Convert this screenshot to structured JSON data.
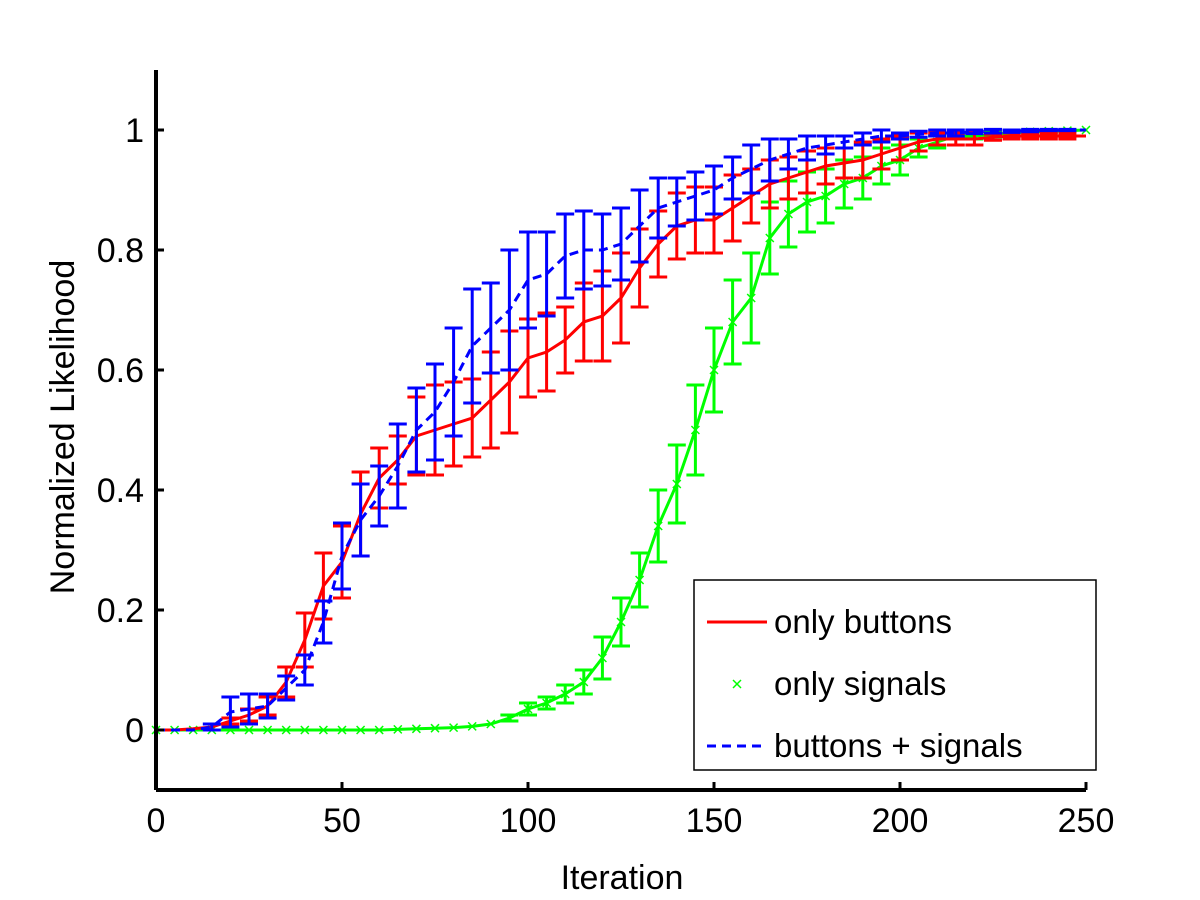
{
  "chart_data": {
    "type": "line",
    "xlabel": "Iteration",
    "ylabel": "Normalized Likelihood",
    "xlim": [
      0,
      250
    ],
    "ylim": [
      -0.1,
      1.1
    ],
    "xticks": [
      0,
      50,
      100,
      150,
      200,
      250
    ],
    "yticks": [
      0,
      0.2,
      0.4,
      0.6,
      0.8,
      1
    ],
    "xtick_labels": [
      "0",
      "50",
      "100",
      "150",
      "200",
      "250"
    ],
    "ytick_labels": [
      "0",
      "0.2",
      "0.4",
      "0.6",
      "0.8",
      "1"
    ],
    "grid": false,
    "legend_position": "bottom-right",
    "series": [
      {
        "name": "only buttons",
        "color": "#ff0000",
        "line_style": "solid",
        "marker": "none",
        "x": [
          0,
          5,
          10,
          15,
          20,
          25,
          30,
          35,
          40,
          45,
          50,
          55,
          60,
          65,
          70,
          75,
          80,
          85,
          90,
          95,
          100,
          105,
          110,
          115,
          120,
          125,
          130,
          135,
          140,
          145,
          150,
          155,
          160,
          165,
          170,
          175,
          180,
          185,
          190,
          195,
          200,
          205,
          210,
          215,
          220,
          225,
          230,
          235,
          240,
          245,
          250
        ],
        "y": [
          0,
          0,
          0.002,
          0.005,
          0.015,
          0.025,
          0.04,
          0.08,
          0.15,
          0.24,
          0.28,
          0.36,
          0.42,
          0.45,
          0.49,
          0.5,
          0.51,
          0.52,
          0.55,
          0.58,
          0.62,
          0.63,
          0.65,
          0.68,
          0.69,
          0.72,
          0.77,
          0.81,
          0.84,
          0.85,
          0.85,
          0.87,
          0.89,
          0.91,
          0.92,
          0.93,
          0.94,
          0.945,
          0.95,
          0.96,
          0.97,
          0.98,
          0.985,
          0.985,
          0.985,
          0.988,
          0.99,
          0.99,
          0.99,
          0.99,
          0.99
        ],
        "err": [
          0,
          0,
          0,
          0,
          0.005,
          0.01,
          0.015,
          0.025,
          0.045,
          0.055,
          0.06,
          0.07,
          0.05,
          0.04,
          0.065,
          0.075,
          0.07,
          0.065,
          0.08,
          0.085,
          0.065,
          0.065,
          0.055,
          0.065,
          0.075,
          0.075,
          0.065,
          0.055,
          0.055,
          0.055,
          0.055,
          0.055,
          0.045,
          0.04,
          0.035,
          0.035,
          0.03,
          0.025,
          0.03,
          0.025,
          0.02,
          0.015,
          0.01,
          0.01,
          0.01,
          0.005,
          0.005,
          0.005,
          0.005,
          0.005,
          0
        ]
      },
      {
        "name": "only signals",
        "color": "#00ff00",
        "line_style": "solid",
        "marker": "x",
        "x": [
          0,
          5,
          10,
          15,
          20,
          25,
          30,
          35,
          40,
          45,
          50,
          55,
          60,
          65,
          70,
          75,
          80,
          85,
          90,
          95,
          100,
          105,
          110,
          115,
          120,
          125,
          130,
          135,
          140,
          145,
          150,
          155,
          160,
          165,
          170,
          175,
          180,
          185,
          190,
          195,
          200,
          205,
          210,
          215,
          220,
          225,
          230,
          235,
          240,
          245,
          250
        ],
        "y": [
          0,
          0,
          0,
          0,
          0,
          0,
          0,
          0,
          0,
          0,
          0,
          0,
          0,
          0.001,
          0.002,
          0.003,
          0.004,
          0.006,
          0.01,
          0.02,
          0.035,
          0.045,
          0.06,
          0.08,
          0.12,
          0.18,
          0.25,
          0.34,
          0.41,
          0.5,
          0.6,
          0.68,
          0.72,
          0.82,
          0.86,
          0.88,
          0.89,
          0.91,
          0.92,
          0.94,
          0.95,
          0.97,
          0.98,
          0.99,
          0.99,
          0.993,
          0.995,
          0.997,
          0.998,
          0.999,
          1.0
        ],
        "err": [
          0,
          0,
          0,
          0,
          0,
          0,
          0,
          0,
          0,
          0,
          0,
          0,
          0,
          0,
          0,
          0,
          0,
          0,
          0,
          0.005,
          0.01,
          0.01,
          0.015,
          0.02,
          0.035,
          0.04,
          0.045,
          0.06,
          0.065,
          0.075,
          0.07,
          0.07,
          0.075,
          0.06,
          0.055,
          0.05,
          0.045,
          0.04,
          0.035,
          0.03,
          0.025,
          0.015,
          0.01,
          0.005,
          0.005,
          0.005,
          0.005,
          0.003,
          0.002,
          0.001,
          0
        ]
      },
      {
        "name": "buttons + signals",
        "color": "#0000ff",
        "line_style": "dashed",
        "marker": "none",
        "x": [
          0,
          5,
          10,
          15,
          20,
          25,
          30,
          35,
          40,
          45,
          50,
          55,
          60,
          65,
          70,
          75,
          80,
          85,
          90,
          95,
          100,
          105,
          110,
          115,
          120,
          125,
          130,
          135,
          140,
          145,
          150,
          155,
          160,
          165,
          170,
          175,
          180,
          185,
          190,
          195,
          200,
          205,
          210,
          215,
          220,
          225,
          230,
          235,
          240,
          245,
          250
        ],
        "y": [
          0,
          0,
          0,
          0.005,
          0.03,
          0.035,
          0.04,
          0.07,
          0.1,
          0.18,
          0.29,
          0.35,
          0.39,
          0.44,
          0.5,
          0.53,
          0.58,
          0.64,
          0.67,
          0.7,
          0.75,
          0.76,
          0.79,
          0.8,
          0.8,
          0.81,
          0.84,
          0.87,
          0.88,
          0.89,
          0.9,
          0.92,
          0.935,
          0.95,
          0.96,
          0.97,
          0.975,
          0.98,
          0.985,
          0.99,
          0.99,
          0.993,
          0.995,
          0.995,
          0.997,
          0.998,
          0.998,
          0.999,
          1.0,
          1.0,
          1.0
        ],
        "err": [
          0,
          0,
          0,
          0.005,
          0.025,
          0.025,
          0.02,
          0.02,
          0.025,
          0.035,
          0.055,
          0.06,
          0.05,
          0.07,
          0.07,
          0.08,
          0.09,
          0.095,
          0.075,
          0.1,
          0.08,
          0.07,
          0.07,
          0.065,
          0.06,
          0.06,
          0.06,
          0.05,
          0.04,
          0.04,
          0.04,
          0.035,
          0.04,
          0.035,
          0.025,
          0.02,
          0.015,
          0.01,
          0.01,
          0.01,
          0.005,
          0.005,
          0.005,
          0.005,
          0.003,
          0.003,
          0.002,
          0.002,
          0.001,
          0.001,
          0
        ]
      }
    ]
  }
}
